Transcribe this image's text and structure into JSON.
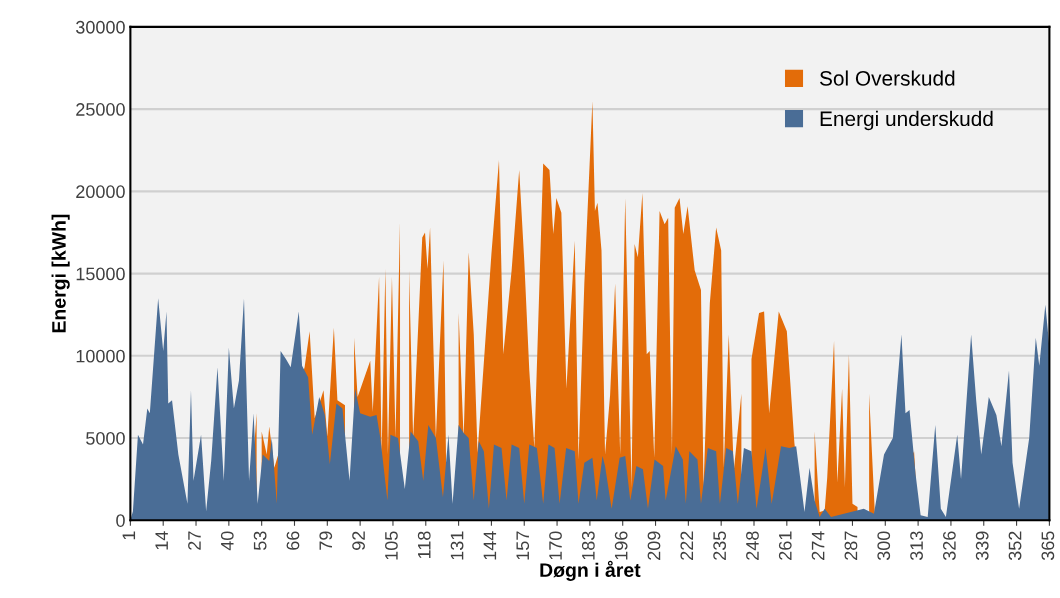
{
  "chart_data": {
    "type": "area",
    "xlabel": "Døgn i året",
    "ylabel": "Energi [kWh]",
    "xlim": [
      1,
      365
    ],
    "xticks": [
      1,
      14,
      27,
      40,
      53,
      66,
      79,
      92,
      105,
      118,
      131,
      144,
      157,
      170,
      183,
      196,
      209,
      222,
      235,
      248,
      261,
      274,
      287,
      300,
      313,
      326,
      339,
      352,
      365
    ],
    "ylim": [
      0,
      30000
    ],
    "yticks": [
      0,
      5000,
      10000,
      15000,
      20000,
      25000,
      30000
    ],
    "grid": "y",
    "legend": "top right",
    "series": [
      {
        "name": "Sol Overskudd",
        "color": "#e36c09",
        "x": [
          48,
          51,
          52,
          53,
          55,
          56,
          58,
          70,
          72,
          74,
          77.5,
          79,
          81.6,
          83,
          86,
          87.5,
          89.6,
          91,
          96,
          97,
          99.5,
          100.5,
          102,
          103,
          104.6,
          106,
          107.8,
          109.7,
          111.4,
          113,
          116.6,
          117.7,
          118.7,
          119.7,
          122,
          125,
          126,
          128.6,
          131,
          133,
          135,
          137,
          138.5,
          144,
          147,
          148.7,
          152,
          155,
          157,
          159,
          161,
          164.5,
          167,
          168.5,
          169.7,
          171.7,
          173.7,
          177,
          178.5,
          180.8,
          184,
          185,
          186,
          187.6,
          189,
          191,
          193,
          195,
          197,
          199.5,
          200.7,
          202,
          203.8,
          205.5,
          206.7,
          208.5,
          210.6,
          212.6,
          214,
          215.5,
          216.6,
          218.5,
          220,
          221.7,
          224.5,
          227,
          228,
          230.5,
          233,
          235,
          236,
          238,
          240,
          243,
          245,
          247,
          250,
          252,
          254,
          257.8,
          261,
          264,
          266,
          268,
          272,
          274,
          276,
          277,
          279.7,
          281,
          282.9,
          284,
          285.6,
          287,
          289,
          291,
          293.6,
          296,
          300,
          311.4,
          313
        ],
        "values": [
          0,
          6500,
          null,
          5400,
          4000,
          5700,
          3200,
          9300,
          11500,
          6200,
          7900,
          5100,
          11700,
          7300,
          7000,
          null,
          11100,
          7500,
          9700,
          6600,
          14800,
          4000,
          15300,
          4000,
          14800,
          5000,
          18200,
          null,
          15200,
          5000,
          17200,
          17500,
          15300,
          17800,
          5000,
          15800,
          4000,
          null,
          12600,
          5000,
          16300,
          11300,
          4100,
          16200,
          21900,
          10100,
          15200,
          21300,
          15800,
          9100,
          4400,
          21700,
          21300,
          17400,
          19600,
          18700,
          8000,
          17000,
          3700,
          14400,
          25500,
          18800,
          19300,
          16400,
          4000,
          7600,
          14400,
          4000,
          19600,
          2000,
          16800,
          16000,
          19900,
          10100,
          10300,
          3800,
          18800,
          18000,
          18400,
          4000,
          19000,
          19600,
          17400,
          19100,
          15200,
          14000,
          2000,
          13200,
          17800,
          16400,
          3200,
          11300,
          3000,
          7700,
          null,
          9800,
          12600,
          12700,
          6500,
          12700,
          11500,
          4700,
          2000,
          null,
          5400,
          500,
          600,
          2600,
          10900,
          2300,
          8000,
          2000,
          10100,
          1000,
          800,
          null,
          7700,
          0,
          0,
          4200,
          0
        ]
      },
      {
        "name": "Energi underskudd",
        "color": "#4a6d96",
        "x": [
          1,
          2,
          4,
          6,
          7.7,
          8.7,
          12,
          14,
          15.3,
          16,
          17.5,
          20,
          23.6,
          25,
          26,
          29,
          31,
          33,
          35.5,
          38,
          40,
          42,
          44,
          46,
          48,
          49.8,
          51.4,
          53.4,
          56,
          57,
          59,
          60.5,
          62.6,
          64.5,
          67.7,
          69,
          71.4,
          73,
          75.8,
          78,
          80,
          82.6,
          85,
          87.8,
          90,
          92,
          96,
          98.5,
          100,
          102.8,
          104,
          107,
          109.7,
          112,
          115,
          117,
          119,
          122,
          124.8,
          127,
          128.6,
          131,
          133,
          135,
          137,
          139,
          141,
          143,
          145,
          148,
          150,
          152,
          155,
          157,
          159,
          162,
          164.5,
          166.6,
          169,
          171,
          173.6,
          177,
          178.5,
          180.8,
          184,
          185.7,
          188,
          189,
          191.6,
          194.8,
          197,
          199,
          201.4,
          204,
          206,
          208.6,
          212,
          213,
          217,
          219.8,
          221,
          222.4,
          225.6,
          227,
          229.7,
          233,
          234.5,
          237,
          239.6,
          241.6,
          244,
          247,
          249,
          252.6,
          255,
          258.7,
          262,
          264.7,
          268,
          270,
          272,
          274,
          276,
          278.5,
          291.5,
          295.5,
          299.5,
          303,
          306.4,
          308,
          309.6,
          312,
          314,
          316.8,
          319.8,
          322,
          324,
          328.5,
          330,
          334,
          336,
          338,
          341,
          344,
          346,
          349,
          350.4,
          353,
          357,
          359.6,
          361,
          363.4,
          365
        ],
        "values": [
          0,
          550,
          5200,
          4600,
          6800,
          6500,
          13500,
          10300,
          12700,
          7100,
          7300,
          4000,
          1000,
          7900,
          2400,
          5200,
          550,
          3600,
          9300,
          2400,
          10500,
          6800,
          8500,
          13500,
          2400,
          6500,
          1000,
          4000,
          3600,
          5000,
          1000,
          10300,
          9800,
          9300,
          12700,
          9400,
          8700,
          5200,
          7500,
          6400,
          3400,
          7100,
          6800,
          2400,
          8000,
          6500,
          6300,
          6400,
          5000,
          1200,
          5200,
          5000,
          1900,
          5400,
          4800,
          2400,
          5800,
          5000,
          1400,
          5200,
          1000,
          5800,
          5300,
          5000,
          1200,
          4800,
          4200,
          700,
          4600,
          4400,
          1200,
          4600,
          4400,
          1000,
          4600,
          4400,
          1000,
          4600,
          4400,
          1000,
          4400,
          4200,
          1000,
          3500,
          3800,
          1200,
          3900,
          3300,
          700,
          3800,
          3900,
          1200,
          3300,
          3100,
          700,
          3700,
          3300,
          1200,
          4500,
          3700,
          1000,
          4200,
          3700,
          1000,
          4400,
          4200,
          1000,
          4400,
          4200,
          1000,
          4400,
          4200,
          700,
          4400,
          1000,
          4500,
          4400,
          4500,
          500,
          3200,
          1200,
          200,
          700,
          200,
          700,
          400,
          4000,
          5000,
          11300,
          6500,
          6700,
          2800,
          300,
          200,
          5800,
          700,
          200,
          5200,
          2500,
          11300,
          7300,
          4000,
          7500,
          6400,
          4500,
          9100,
          3500,
          700,
          5000,
          11100,
          9400,
          13100,
          10500
        ]
      }
    ]
  }
}
